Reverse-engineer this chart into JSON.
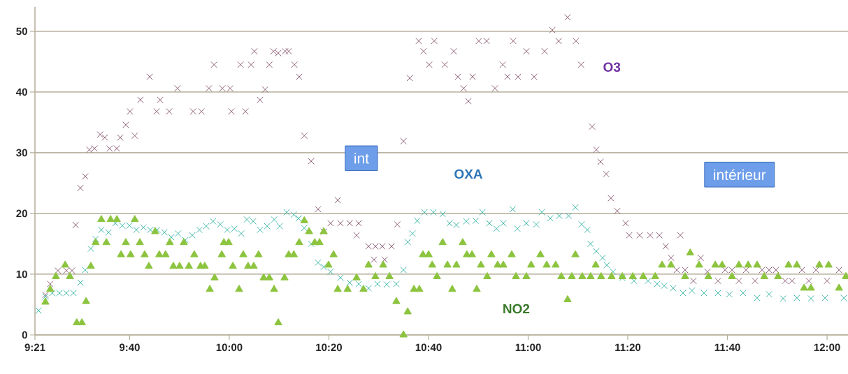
{
  "chart_data": {
    "type": "scatter",
    "xlim": [
      9.35,
      12.07
    ],
    "ylim": [
      0,
      54
    ],
    "xticks": [
      {
        "value": 9.35,
        "label": "9:21"
      },
      {
        "value": 9.6667,
        "label": "9:40"
      },
      {
        "value": 10,
        "label": "10:00"
      },
      {
        "value": 10.3333,
        "label": "10:20"
      },
      {
        "value": 10.6667,
        "label": "10:40"
      },
      {
        "value": 11,
        "label": "11:00"
      },
      {
        "value": 11.3333,
        "label": "11:20"
      },
      {
        "value": 11.6667,
        "label": "11:40"
      },
      {
        "value": 12,
        "label": "12:00"
      }
    ],
    "yticks": [
      0,
      10,
      20,
      30,
      40,
      50
    ],
    "grid": "y",
    "annotations": [
      "int",
      "intérieur"
    ],
    "series": [
      {
        "name": "O3",
        "color": "#8e5f78",
        "marker": "cross",
        "x": [
          9.385,
          9.401,
          9.427,
          9.455,
          9.474,
          9.486,
          9.502,
          9.518,
          9.532,
          9.549,
          9.568,
          9.584,
          9.6,
          9.624,
          9.635,
          9.654,
          9.668,
          9.684,
          9.703,
          9.734,
          9.757,
          9.769,
          9.799,
          9.827,
          9.879,
          9.907,
          9.932,
          9.949,
          9.977,
          10.003,
          10.007,
          10.038,
          10.054,
          10.073,
          10.084,
          10.103,
          10.12,
          10.134,
          10.148,
          10.164,
          10.187,
          10.199,
          10.218,
          10.234,
          10.251,
          10.274,
          10.297,
          10.316,
          10.339,
          10.363,
          10.372,
          10.403,
          10.426,
          10.433,
          10.466,
          10.484,
          10.489,
          10.512,
          10.52,
          10.543,
          10.562,
          10.583,
          10.604,
          10.634,
          10.65,
          10.669,
          10.686,
          10.721,
          10.751,
          10.765,
          10.784,
          10.8,
          10.814,
          10.835,
          10.861,
          10.889,
          10.915,
          10.931,
          10.95,
          10.966,
          10.994,
          11.02,
          11.055,
          11.081,
          11.102,
          11.132,
          11.16,
          11.177,
          11.214,
          11.228,
          11.242,
          11.261,
          11.277,
          11.298,
          11.326,
          11.338,
          11.373,
          11.408,
          11.439,
          11.46,
          11.478,
          11.497,
          11.509,
          11.525,
          11.553,
          11.577,
          11.6,
          11.635,
          11.659,
          11.682,
          11.705,
          11.729,
          11.759,
          11.783,
          11.806,
          11.829,
          11.86,
          11.883,
          11.916,
          11.939,
          11.963,
          12.0,
          12.04
        ],
        "values": [
          6.6,
          8.4,
          10.6,
          10.6,
          10.6,
          18.1,
          24.2,
          26.1,
          30.5,
          30.7,
          33,
          32.5,
          30.7,
          30.7,
          32.5,
          34.6,
          36.8,
          32.8,
          38.7,
          42.5,
          36.8,
          38.7,
          36.8,
          40.6,
          36.8,
          36.8,
          40.6,
          44.5,
          40.6,
          40.6,
          36.8,
          44.5,
          36.8,
          44.5,
          46.7,
          38.7,
          40.4,
          44.5,
          46.7,
          46.4,
          46.7,
          46.7,
          44.5,
          42.5,
          32.8,
          28.6,
          20.7,
          17,
          18.4,
          22.2,
          18.4,
          18.4,
          16.4,
          18.4,
          14.6,
          12.4,
          14.6,
          14.6,
          12.4,
          14.6,
          18.2,
          31.9,
          42.3,
          48.4,
          46.7,
          44.5,
          48.4,
          44.5,
          46.7,
          42.5,
          40.6,
          38.5,
          42.5,
          48.4,
          48.4,
          40.6,
          44.5,
          42.5,
          48.4,
          42.5,
          46.7,
          42.5,
          46.7,
          50.2,
          48.4,
          52.3,
          48.4,
          44.5,
          34.3,
          30.5,
          28.5,
          26.5,
          22.5,
          20.4,
          18.4,
          16.4,
          16.4,
          16.4,
          16.4,
          14.6,
          12.7,
          10.7,
          16.4,
          10.7,
          8.9,
          12.7,
          10.4,
          8.9,
          10.7,
          10.7,
          8.9,
          10.7,
          8.9,
          10.7,
          10.7,
          10.7,
          8.9,
          8.9,
          10.7,
          8.9,
          10.7,
          8.9,
          10.7
        ]
      },
      {
        "name": "OXA",
        "color": "#3fb8a8",
        "marker": "cross",
        "x": [
          9.362,
          9.385,
          9.408,
          9.432,
          9.455,
          9.479,
          9.502,
          9.518,
          9.537,
          9.553,
          9.572,
          9.596,
          9.619,
          9.642,
          9.666,
          9.689,
          9.713,
          9.736,
          9.759,
          9.783,
          9.806,
          9.829,
          9.853,
          9.876,
          9.9,
          9.923,
          9.946,
          9.97,
          9.993,
          10.017,
          10.04,
          10.059,
          10.08,
          10.103,
          10.127,
          10.15,
          10.169,
          10.192,
          10.216,
          10.232,
          10.251,
          10.274,
          10.297,
          10.316,
          10.339,
          10.372,
          10.403,
          10.433,
          10.466,
          10.496,
          10.527,
          10.559,
          10.583,
          10.597,
          10.613,
          10.629,
          10.653,
          10.683,
          10.714,
          10.737,
          10.76,
          10.793,
          10.824,
          10.847,
          10.87,
          10.894,
          10.917,
          10.948,
          10.964,
          10.994,
          11.027,
          11.046,
          11.074,
          11.104,
          11.135,
          11.158,
          11.179,
          11.198,
          11.209,
          11.228,
          11.249,
          11.263,
          11.284,
          11.315,
          11.354,
          11.401,
          11.432,
          11.455,
          11.485,
          11.518,
          11.548,
          11.588,
          11.635,
          11.673,
          11.719,
          11.766,
          11.806,
          11.853,
          11.899,
          11.946,
          11.993,
          12.056
        ],
        "values": [
          4,
          6.3,
          6.9,
          6.9,
          6.9,
          6.9,
          8.6,
          10.7,
          14.2,
          15.8,
          17.3,
          16.9,
          18.4,
          18,
          18,
          17.3,
          17.7,
          17.3,
          17.3,
          16.9,
          16.1,
          16.7,
          15.6,
          16.4,
          17.3,
          17.9,
          18.7,
          18.2,
          17.3,
          17.5,
          16.7,
          19,
          18.7,
          17.3,
          17.9,
          19,
          17.9,
          20.2,
          19.8,
          19.2,
          17.6,
          15,
          11.9,
          11.2,
          10.4,
          9.4,
          8.6,
          8.4,
          7.7,
          8.4,
          8.3,
          8.4,
          10.7,
          15.3,
          16.7,
          18.8,
          20.2,
          20.2,
          19.9,
          18.4,
          18.1,
          18.7,
          18.8,
          20.2,
          18.4,
          17.5,
          18.4,
          20.7,
          17.5,
          18.4,
          18.2,
          20.2,
          19.2,
          19.6,
          19.6,
          21,
          18.2,
          17.3,
          15,
          13.8,
          12.7,
          11.5,
          10.4,
          9.4,
          8.9,
          8.9,
          8.4,
          8.1,
          7.7,
          6.9,
          7.3,
          6.9,
          6.9,
          6.7,
          6.9,
          6.1,
          6.7,
          6,
          6.1,
          6,
          6.1,
          6.1
        ]
      },
      {
        "name": "NO2",
        "color": "#8cc43f",
        "marker": "triangle",
        "x": [
          9.385,
          9.401,
          9.42,
          9.451,
          9.467,
          9.49,
          9.507,
          9.521,
          9.537,
          9.553,
          9.572,
          9.589,
          9.603,
          9.624,
          9.638,
          9.654,
          9.67,
          9.684,
          9.701,
          9.717,
          9.731,
          9.752,
          9.766,
          9.787,
          9.801,
          9.813,
          9.834,
          9.848,
          9.865,
          9.883,
          9.904,
          9.918,
          9.935,
          9.951,
          9.975,
          9.982,
          9.998,
          10.012,
          10.033,
          10.047,
          10.063,
          10.082,
          10.098,
          10.115,
          10.134,
          10.15,
          10.164,
          10.185,
          10.199,
          10.216,
          10.234,
          10.251,
          10.267,
          10.286,
          10.302,
          10.316,
          10.332,
          10.349,
          10.363,
          10.396,
          10.426,
          10.449,
          10.466,
          10.489,
          10.515,
          10.536,
          10.559,
          10.583,
          10.597,
          10.618,
          10.636,
          10.648,
          10.667,
          10.679,
          10.695,
          10.714,
          10.73,
          10.746,
          10.76,
          10.781,
          10.795,
          10.812,
          10.828,
          10.842,
          10.863,
          10.877,
          10.898,
          10.917,
          10.945,
          10.959,
          10.994,
          11.01,
          11.041,
          11.062,
          11.092,
          11.111,
          11.132,
          11.146,
          11.158,
          11.181,
          11.209,
          11.226,
          11.244,
          11.279,
          11.315,
          11.35,
          11.385,
          11.425,
          11.448,
          11.478,
          11.525,
          11.542,
          11.572,
          11.603,
          11.626,
          11.649,
          11.682,
          11.705,
          11.736,
          11.766,
          11.79,
          11.836,
          11.871,
          11.899,
          11.923,
          11.946,
          11.974,
          12.005,
          12.04,
          12.063
        ],
        "values": [
          5.4,
          7.5,
          9.6,
          11.5,
          9.6,
          2,
          2,
          5.5,
          11.3,
          15.2,
          19,
          15.2,
          19,
          19,
          13.2,
          15.2,
          13.2,
          19,
          15.2,
          13.2,
          11.3,
          17,
          13.2,
          13.2,
          15.2,
          11.3,
          11.3,
          15.2,
          11.3,
          13.2,
          11.3,
          11.3,
          7.5,
          9.4,
          13.2,
          15.2,
          15.2,
          11.3,
          7.5,
          13.2,
          11.3,
          11.3,
          13.2,
          9.4,
          9.4,
          7.5,
          2,
          9.4,
          13.2,
          13.2,
          15.2,
          18.8,
          17,
          15.2,
          15.2,
          17,
          11.5,
          13.2,
          7.5,
          7.5,
          9.4,
          7.5,
          11.5,
          9.6,
          11.5,
          9.6,
          5.5,
          0,
          3.8,
          7.5,
          7.5,
          13.2,
          13.2,
          11.5,
          9.6,
          15.2,
          11.5,
          7.5,
          11.5,
          15.2,
          13.2,
          13.2,
          7.5,
          11.5,
          9.6,
          13.2,
          11.5,
          11.5,
          13.2,
          9.6,
          9.6,
          11.5,
          13.2,
          11.5,
          11.5,
          9.6,
          5.8,
          9.6,
          13.2,
          9.6,
          9.6,
          11.5,
          9.6,
          9.6,
          9.6,
          9.6,
          9.6,
          9.6,
          11.5,
          11.5,
          9.6,
          13.5,
          11.5,
          9.6,
          11.5,
          11.5,
          9.6,
          11.5,
          11.5,
          11.5,
          9.6,
          9.6,
          11.5,
          11.5,
          7.7,
          7.7,
          11.5,
          11.5,
          7.7,
          9.6
        ]
      }
    ]
  }
}
